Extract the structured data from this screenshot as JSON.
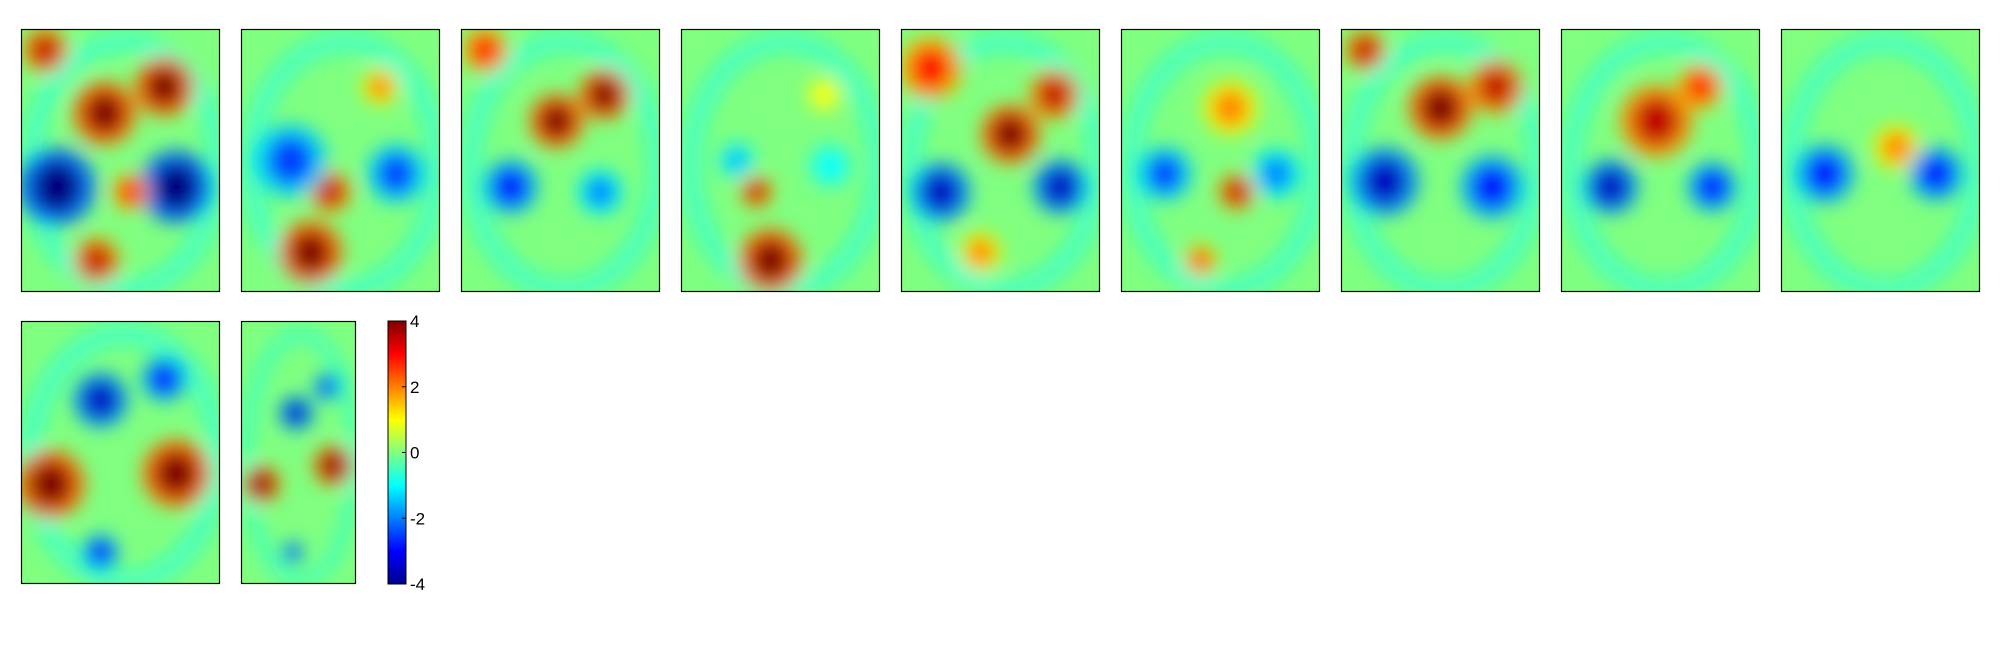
{
  "chart_data": {
    "type": "heatmap",
    "title": "",
    "panel_count": 11,
    "colormap": "jet",
    "value_range": [
      -4,
      4
    ],
    "background_value": 0,
    "colorbar": {
      "ticks": [
        4,
        2,
        0,
        -2,
        -4
      ],
      "tick_labels": [
        "4",
        "2",
        "0",
        "-2",
        "-4"
      ]
    },
    "panels": [
      {
        "name": "panel-1",
        "blobs": [
          {
            "u": 0.12,
            "v": 0.08,
            "r": 0.1,
            "value": 3.5
          },
          {
            "u": 0.42,
            "v": 0.32,
            "r": 0.14,
            "value": 4.0
          },
          {
            "u": 0.72,
            "v": 0.22,
            "r": 0.13,
            "value": 4.0
          },
          {
            "u": 0.18,
            "v": 0.6,
            "r": 0.17,
            "value": -4.0
          },
          {
            "u": 0.78,
            "v": 0.6,
            "r": 0.16,
            "value": -4.0
          },
          {
            "u": 0.38,
            "v": 0.88,
            "r": 0.1,
            "value": 3.5
          },
          {
            "u": 0.55,
            "v": 0.62,
            "r": 0.08,
            "value": 3.0
          }
        ]
      },
      {
        "name": "panel-2",
        "blobs": [
          {
            "u": 0.7,
            "v": 0.22,
            "r": 0.08,
            "value": 2.0
          },
          {
            "u": 0.45,
            "v": 0.62,
            "r": 0.09,
            "value": 3.5
          },
          {
            "u": 0.35,
            "v": 0.85,
            "r": 0.14,
            "value": 4.0
          },
          {
            "u": 0.25,
            "v": 0.5,
            "r": 0.16,
            "value": -2.5
          },
          {
            "u": 0.78,
            "v": 0.55,
            "r": 0.13,
            "value": -2.5
          }
        ]
      },
      {
        "name": "panel-3",
        "blobs": [
          {
            "u": 0.12,
            "v": 0.08,
            "r": 0.1,
            "value": 3.0
          },
          {
            "u": 0.48,
            "v": 0.35,
            "r": 0.12,
            "value": 4.0
          },
          {
            "u": 0.72,
            "v": 0.25,
            "r": 0.11,
            "value": 4.0
          },
          {
            "u": 0.25,
            "v": 0.6,
            "r": 0.12,
            "value": -3.0
          },
          {
            "u": 0.7,
            "v": 0.62,
            "r": 0.1,
            "value": -2.0
          }
        ]
      },
      {
        "name": "panel-4",
        "blobs": [
          {
            "u": 0.45,
            "v": 0.88,
            "r": 0.14,
            "value": 4.0
          },
          {
            "u": 0.38,
            "v": 0.62,
            "r": 0.07,
            "value": 3.5
          },
          {
            "u": 0.72,
            "v": 0.25,
            "r": 0.08,
            "value": 1.0
          },
          {
            "u": 0.28,
            "v": 0.5,
            "r": 0.08,
            "value": -1.5
          },
          {
            "u": 0.75,
            "v": 0.52,
            "r": 0.1,
            "value": -1.0
          }
        ]
      },
      {
        "name": "panel-5",
        "blobs": [
          {
            "u": 0.15,
            "v": 0.15,
            "r": 0.14,
            "value": 3.0
          },
          {
            "u": 0.55,
            "v": 0.4,
            "r": 0.13,
            "value": 4.0
          },
          {
            "u": 0.77,
            "v": 0.25,
            "r": 0.11,
            "value": 3.5
          },
          {
            "u": 0.2,
            "v": 0.62,
            "r": 0.13,
            "value": -3.5
          },
          {
            "u": 0.8,
            "v": 0.6,
            "r": 0.12,
            "value": -3.5
          },
          {
            "u": 0.4,
            "v": 0.85,
            "r": 0.09,
            "value": 2.0
          }
        ]
      },
      {
        "name": "panel-6",
        "blobs": [
          {
            "u": 0.55,
            "v": 0.3,
            "r": 0.12,
            "value": 2.0
          },
          {
            "u": 0.58,
            "v": 0.62,
            "r": 0.08,
            "value": 3.5
          },
          {
            "u": 0.4,
            "v": 0.88,
            "r": 0.07,
            "value": 2.5
          },
          {
            "u": 0.22,
            "v": 0.55,
            "r": 0.12,
            "value": -2.5
          },
          {
            "u": 0.78,
            "v": 0.55,
            "r": 0.11,
            "value": -2.0
          }
        ]
      },
      {
        "name": "panel-7",
        "blobs": [
          {
            "u": 0.12,
            "v": 0.08,
            "r": 0.09,
            "value": 3.5
          },
          {
            "u": 0.5,
            "v": 0.3,
            "r": 0.14,
            "value": 4.0
          },
          {
            "u": 0.78,
            "v": 0.22,
            "r": 0.12,
            "value": 3.5
          },
          {
            "u": 0.22,
            "v": 0.58,
            "r": 0.15,
            "value": -3.5
          },
          {
            "u": 0.76,
            "v": 0.6,
            "r": 0.14,
            "value": -3.0
          }
        ]
      },
      {
        "name": "panel-8",
        "blobs": [
          {
            "u": 0.48,
            "v": 0.35,
            "r": 0.16,
            "value": 3.5
          },
          {
            "u": 0.7,
            "v": 0.22,
            "r": 0.1,
            "value": 3.0
          },
          {
            "u": 0.25,
            "v": 0.6,
            "r": 0.12,
            "value": -3.5
          },
          {
            "u": 0.76,
            "v": 0.6,
            "r": 0.11,
            "value": -3.0
          }
        ]
      },
      {
        "name": "panel-9",
        "blobs": [
          {
            "u": 0.58,
            "v": 0.45,
            "r": 0.1,
            "value": 2.0
          },
          {
            "u": 0.22,
            "v": 0.55,
            "r": 0.13,
            "value": -3.0
          },
          {
            "u": 0.78,
            "v": 0.55,
            "r": 0.12,
            "value": -3.0
          }
        ]
      },
      {
        "name": "panel-10",
        "blobs": [
          {
            "u": 0.15,
            "v": 0.62,
            "r": 0.15,
            "value": 4.0
          },
          {
            "u": 0.78,
            "v": 0.58,
            "r": 0.15,
            "value": 4.0
          },
          {
            "u": 0.4,
            "v": 0.3,
            "r": 0.12,
            "value": -3.5
          },
          {
            "u": 0.72,
            "v": 0.22,
            "r": 0.1,
            "value": -3.0
          },
          {
            "u": 0.4,
            "v": 0.88,
            "r": 0.08,
            "value": -3.0
          }
        ]
      },
      {
        "name": "panel-11",
        "blobs": [
          {
            "u": 0.18,
            "v": 0.62,
            "r": 0.14,
            "value": 4.0
          },
          {
            "u": 0.8,
            "v": 0.55,
            "r": 0.15,
            "value": 4.0
          },
          {
            "u": 0.48,
            "v": 0.35,
            "r": 0.13,
            "value": -3.5
          },
          {
            "u": 0.75,
            "v": 0.25,
            "r": 0.1,
            "value": -3.0
          },
          {
            "u": 0.45,
            "v": 0.88,
            "r": 0.08,
            "value": -3.0
          }
        ]
      }
    ]
  }
}
